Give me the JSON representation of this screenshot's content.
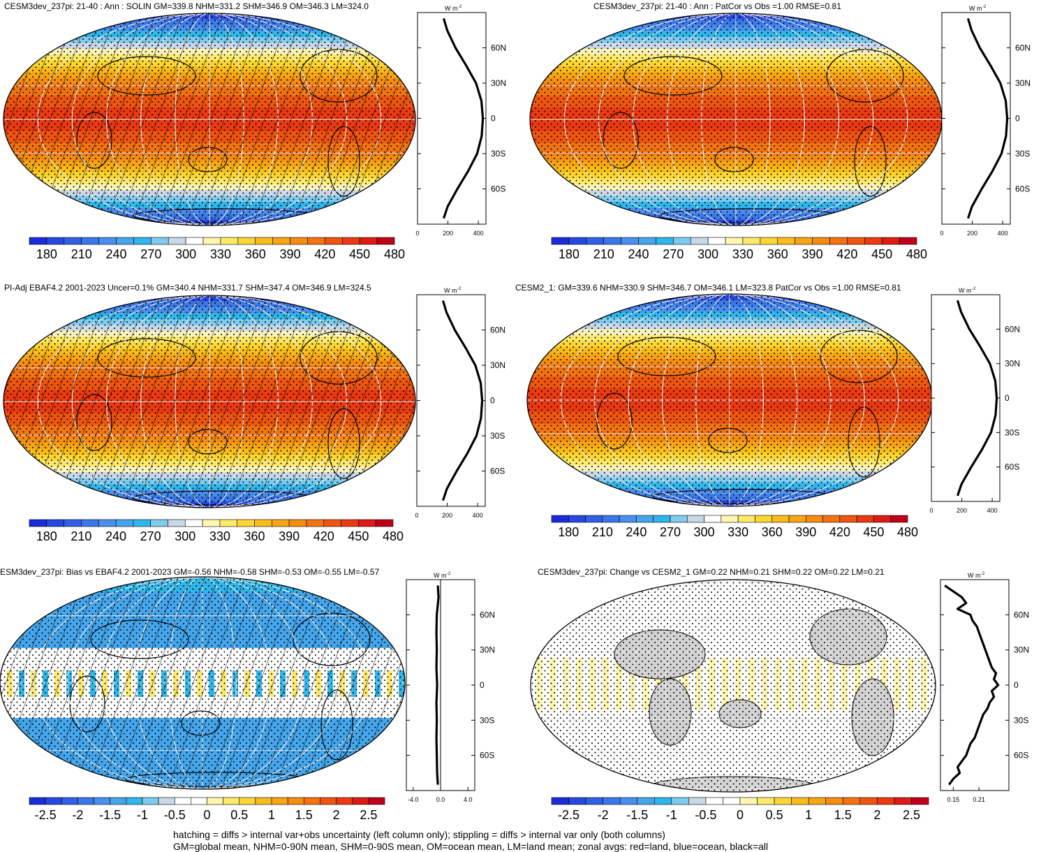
{
  "footer": {
    "line1": "hatching = diffs > internal var+obs uncertainty (left column only); stippling = diffs > internal var only (both columns)",
    "line2": "GM=global mean, NHM=0-90N mean, SHM=0-90S mean, OM=ocean mean, LM=land mean; zonal avgs: red=land, blue=ocean, black=all"
  },
  "colors": {
    "abs_levels": [
      "#1a2bd9",
      "#2748e0",
      "#3060e6",
      "#3a78ea",
      "#4a8fee",
      "#45a6ec",
      "#2fb6ea",
      "#7ecbee",
      "#c8d8e8",
      "#ffffff",
      "#fff6b0",
      "#fde96a",
      "#fbd634",
      "#f8bd1c",
      "#f6a514",
      "#f48d10",
      "#f27410",
      "#ee5510",
      "#ea3a12",
      "#de1a14",
      "#c00018"
    ],
    "diff_levels": [
      "#1a2bd9",
      "#2748e0",
      "#3060e6",
      "#3a78ea",
      "#4a8fee",
      "#45a6ec",
      "#2fb6ea",
      "#7ecbee",
      "#c8d8e8",
      "#ffffff",
      "#ffffff",
      "#fff6b0",
      "#fde96a",
      "#fbd634",
      "#f8bd1c",
      "#f6a514",
      "#f48d10",
      "#f27410",
      "#ee5510",
      "#ea3a12",
      "#de1a14",
      "#c00018"
    ],
    "land": "#d3d3d3",
    "zonal_all": "#000000",
    "zonal_land": "#e41a1c",
    "zonal_ocean": "#1f3a93"
  },
  "chart_data": [
    {
      "type": "heatmap",
      "title": "CESM3dev_237pi: 21-40 : Ann : SOLIN GM=339.8 NHM=331.2 SHM=346.9 OM=346.3 LM=324.0",
      "variable": "SOLIN",
      "colorbar_ticks": [
        "180",
        "210",
        "240",
        "270",
        "300",
        "330",
        "360",
        "390",
        "420",
        "450",
        "480"
      ],
      "projection": "Robinson",
      "hatching": true,
      "stippling": true,
      "zonal_mean": {
        "units_label": "W m",
        "units_exp": "-2",
        "xlim": [
          0,
          450
        ],
        "xticks": [
          "0",
          "200",
          "400"
        ],
        "yticks": [
          "60N",
          "30N",
          "0",
          "30S",
          "60S"
        ],
        "lat": [
          85,
          75,
          60,
          45,
          30,
          15,
          0,
          -15,
          -30,
          -45,
          -60,
          -75,
          -85
        ],
        "all": [
          172,
          195,
          250,
          320,
          385,
          420,
          430,
          422,
          392,
          332,
          262,
          198,
          172
        ]
      }
    },
    {
      "type": "heatmap",
      "title": "CESM3dev_237pi: 21-40 : Ann : PatCor vs Obs =1.00 RMSE=0.81",
      "variable": "SOLIN",
      "colorbar_ticks": [
        "180",
        "210",
        "240",
        "270",
        "300",
        "330",
        "360",
        "390",
        "420",
        "450",
        "480"
      ],
      "projection": "Robinson",
      "hatching": false,
      "stippling": true,
      "zonal_mean": {
        "units_label": "W m",
        "units_exp": "-2",
        "xlim": [
          0,
          450
        ],
        "xticks": [
          "0",
          "200",
          "400"
        ],
        "yticks": [
          "60N",
          "30N",
          "0",
          "30S",
          "60S"
        ],
        "lat": [
          85,
          75,
          60,
          45,
          30,
          15,
          0,
          -15,
          -30,
          -45,
          -60,
          -75,
          -85
        ],
        "all": [
          172,
          195,
          250,
          320,
          385,
          420,
          430,
          422,
          392,
          332,
          262,
          198,
          172
        ]
      }
    },
    {
      "type": "heatmap",
      "title": "PI-Adj EBAF4.2 2001-2023 Uncer=0.1% GM=340.4 NHM=331.7 SHM=347.4 OM=346.9 LM=324.5",
      "variable": "SOLIN",
      "colorbar_ticks": [
        "180",
        "210",
        "240",
        "270",
        "300",
        "330",
        "360",
        "390",
        "420",
        "450",
        "480"
      ],
      "projection": "Robinson",
      "hatching": true,
      "stippling": true,
      "zonal_mean": {
        "units_label": "W m",
        "units_exp": "-2",
        "xlim": [
          0,
          450
        ],
        "xticks": [
          "0",
          "200",
          "400"
        ],
        "yticks": [
          "60N",
          "30N",
          "0",
          "30S",
          "60S"
        ],
        "lat": [
          85,
          75,
          60,
          45,
          30,
          15,
          0,
          -15,
          -30,
          -45,
          -60,
          -75,
          -85
        ],
        "all": [
          172,
          195,
          250,
          320,
          385,
          420,
          430,
          422,
          392,
          332,
          262,
          198,
          172
        ]
      }
    },
    {
      "type": "heatmap",
      "title": "CESM2_1: GM=339.6 NHM=330.9 SHM=346.7 OM=346.1 LM=323.8 PatCor vs Obs =1.00 RMSE=0.81",
      "variable": "SOLIN",
      "colorbar_ticks": [
        "180",
        "210",
        "240",
        "270",
        "300",
        "330",
        "360",
        "390",
        "420",
        "450",
        "480"
      ],
      "projection": "Robinson",
      "hatching": false,
      "stippling": true,
      "zonal_mean": {
        "units_label": "W m",
        "units_exp": "-2",
        "xlim": [
          0,
          450
        ],
        "xticks": [
          "0",
          "200",
          "400"
        ],
        "yticks": [
          "60N",
          "30N",
          "0",
          "30S",
          "60S"
        ],
        "lat": [
          85,
          75,
          60,
          45,
          30,
          15,
          0,
          -15,
          -30,
          -45,
          -60,
          -75,
          -85
        ],
        "all": [
          172,
          195,
          250,
          320,
          385,
          420,
          430,
          422,
          392,
          332,
          262,
          198,
          172
        ]
      }
    },
    {
      "type": "heatmap",
      "title": "ESM3dev_237pi: Bias vs EBAF4.2 2001-2023 GM=-0.56 NHM=-0.58 SHM=-0.53 OM=-0.55 LM=-0.57",
      "variable": "SOLIN bias",
      "colorbar_ticks": [
        "-2.5",
        "-2",
        "-1.5",
        "-1",
        "-0.5",
        "0",
        "0.5",
        "1",
        "1.5",
        "2",
        "2.5"
      ],
      "projection": "Robinson",
      "hatching": true,
      "stippling": true,
      "zonal_mean": {
        "units_label": "W m",
        "units_exp": "-2",
        "xlim": [
          -5,
          5
        ],
        "xticks": [
          "-4.0",
          "0.0",
          "4.0"
        ],
        "zero_line": true,
        "yticks": [
          "60N",
          "30N",
          "0",
          "30S",
          "60S"
        ],
        "lat": [
          85,
          75,
          60,
          45,
          30,
          15,
          0,
          -15,
          -30,
          -45,
          -60,
          -75,
          -85
        ],
        "all": [
          -0.4,
          -0.3,
          -0.55,
          -0.6,
          -0.55,
          -0.6,
          -0.5,
          -0.6,
          -0.55,
          -0.6,
          -0.55,
          -0.5,
          -0.4
        ]
      }
    },
    {
      "type": "heatmap",
      "title": "CESM3dev_237pi: Change vs CESM2_1 GM=0.22 NHM=0.21 SHM=0.22 OM=0.22 LM=0.21",
      "variable": "SOLIN change",
      "colorbar_ticks": [
        "-2.5",
        "-2",
        "-1.5",
        "-1",
        "-0.5",
        "0",
        "0.5",
        "1",
        "1.5",
        "2",
        "2.5"
      ],
      "projection": "Robinson",
      "hatching": false,
      "stippling": true,
      "zonal_mean": {
        "units_label": "W m",
        "units_exp": "-2",
        "xlim": [
          0.12,
          0.28
        ],
        "xticks": [
          "0.15",
          "0.21"
        ],
        "yticks": [
          "60N",
          "30N",
          "0",
          "30S",
          "60S"
        ],
        "lat": [
          85,
          80,
          75,
          70,
          65,
          60,
          55,
          50,
          45,
          40,
          35,
          30,
          25,
          20,
          15,
          10,
          5,
          0,
          -5,
          -10,
          -15,
          -20,
          -25,
          -30,
          -35,
          -40,
          -45,
          -50,
          -55,
          -60,
          -65,
          -70,
          -75,
          -80,
          -85
        ],
        "all": [
          0.13,
          0.15,
          0.17,
          0.18,
          0.16,
          0.19,
          0.195,
          0.205,
          0.21,
          0.215,
          0.22,
          0.225,
          0.23,
          0.235,
          0.24,
          0.25,
          0.245,
          0.255,
          0.24,
          0.245,
          0.235,
          0.23,
          0.22,
          0.215,
          0.21,
          0.205,
          0.2,
          0.19,
          0.185,
          0.18,
          0.17,
          0.16,
          0.165,
          0.15,
          0.14
        ]
      }
    }
  ]
}
